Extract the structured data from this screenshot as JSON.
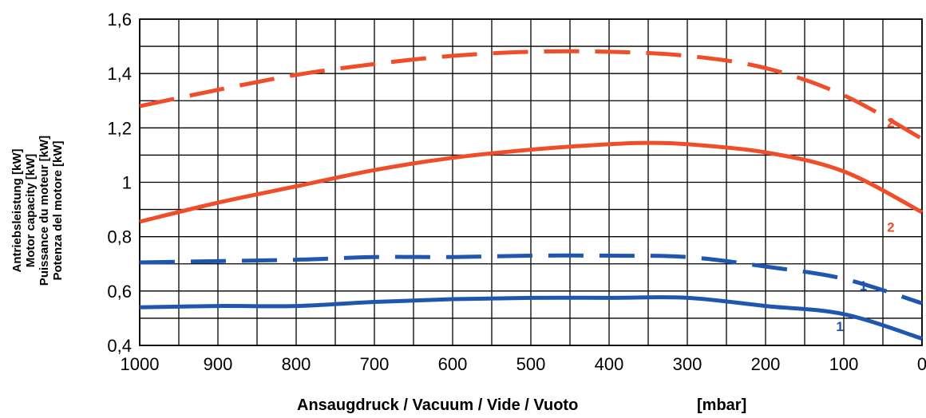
{
  "chart_data": {
    "type": "line",
    "xlabel": "Ansaugdruck / Vacuum / Vide / Vuoto",
    "xunit": "[mbar]",
    "ylabel_lines": [
      "Antriebsleistung [kW]",
      "Motor capacity [kW]",
      "Puissance du moteur [kW]",
      "Potenza del motore [kW]"
    ],
    "xlim": [
      1000,
      0
    ],
    "ylim": [
      0.4,
      1.6
    ],
    "x_ticks": [
      1000,
      900,
      800,
      700,
      600,
      500,
      400,
      300,
      200,
      100,
      0
    ],
    "x_tick_labels": [
      "1000",
      "900",
      "800",
      "700",
      "600",
      "500",
      "400",
      "300",
      "200",
      "100",
      "0"
    ],
    "y_ticks": [
      0.4,
      0.6,
      0.8,
      1.0,
      1.2,
      1.4,
      1.6
    ],
    "y_tick_labels": [
      "0,4",
      "0,6",
      "0,8",
      "1",
      "1,2",
      "1,4",
      "1,6"
    ],
    "grid": true,
    "series": [
      {
        "label": "2",
        "color": "#f04e2a",
        "style": "dashed",
        "x": [
          1000,
          900,
          800,
          700,
          600,
          500,
          400,
          300,
          200,
          100,
          0
        ],
        "y": [
          1.28,
          1.34,
          1.395,
          1.435,
          1.465,
          1.48,
          1.48,
          1.465,
          1.42,
          1.32,
          1.16
        ]
      },
      {
        "label": "2",
        "color": "#f04e2a",
        "style": "solid",
        "x": [
          1000,
          900,
          800,
          700,
          600,
          500,
          400,
          350,
          300,
          200,
          100,
          0
        ],
        "y": [
          0.855,
          0.925,
          0.985,
          1.045,
          1.09,
          1.12,
          1.14,
          1.145,
          1.14,
          1.11,
          1.04,
          0.89
        ]
      },
      {
        "label": "1",
        "color": "#1f56b0",
        "style": "dashed",
        "x": [
          1000,
          900,
          800,
          700,
          600,
          500,
          400,
          300,
          200,
          100,
          0
        ],
        "y": [
          0.705,
          0.71,
          0.715,
          0.725,
          0.725,
          0.73,
          0.73,
          0.725,
          0.69,
          0.645,
          0.555
        ]
      },
      {
        "label": "1",
        "color": "#1f56b0",
        "style": "solid",
        "x": [
          1000,
          900,
          800,
          700,
          600,
          500,
          400,
          300,
          200,
          100,
          0
        ],
        "y": [
          0.54,
          0.545,
          0.545,
          0.56,
          0.57,
          0.575,
          0.575,
          0.575,
          0.545,
          0.515,
          0.425
        ]
      }
    ]
  }
}
